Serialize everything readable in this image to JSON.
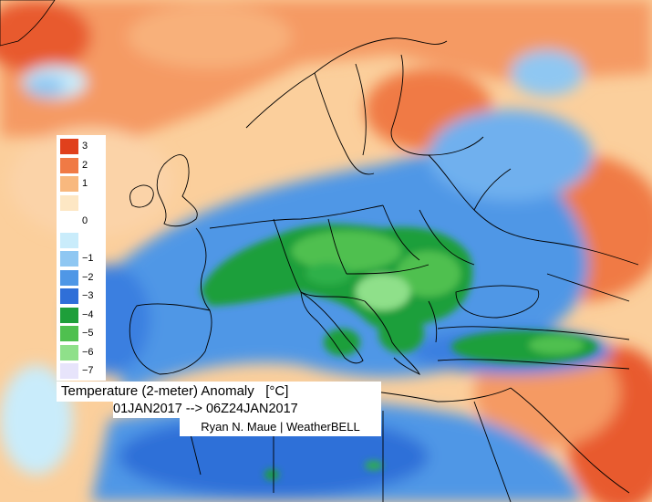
{
  "map": {
    "variable": "Temperature (2-meter) Anomaly",
    "unit": "[°C]",
    "period": "01JAN2017 --> 06Z24JAN2017",
    "credit": "Ryan N. Maue | WeatherBELL"
  },
  "legend": [
    {
      "label": "3",
      "color": "#e0401c"
    },
    {
      "label": "2",
      "color": "#f07a45"
    },
    {
      "label": "1",
      "color": "#f8b87e"
    },
    {
      "label": "",
      "color": "#fde7c4"
    },
    {
      "label": "0",
      "color": "#ffffff"
    },
    {
      "label": "",
      "color": "#c9ecfb"
    },
    {
      "label": "−1",
      "color": "#8fc7f2"
    },
    {
      "label": "−2",
      "color": "#4f97e6"
    },
    {
      "label": "−3",
      "color": "#2f6fd8"
    },
    {
      "label": "−4",
      "color": "#1e9f3a"
    },
    {
      "label": "−5",
      "color": "#4fc04f"
    },
    {
      "label": "−6",
      "color": "#8fe08a"
    },
    {
      "label": "−7",
      "color": "#e7e4fb"
    }
  ]
}
